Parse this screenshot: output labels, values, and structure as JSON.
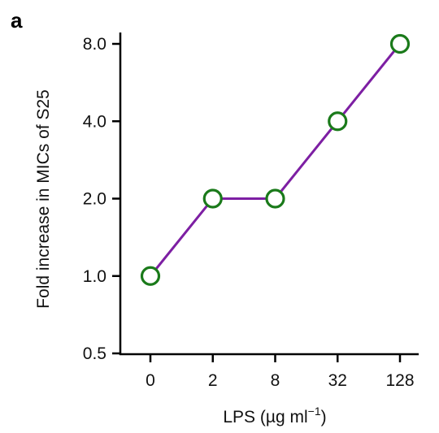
{
  "panel_label": "a",
  "chart_data": {
    "type": "line",
    "categories": [
      "0",
      "2",
      "8",
      "32",
      "128"
    ],
    "values": [
      1.0,
      2.0,
      2.0,
      4.0,
      8.0
    ],
    "xlabel_main": "LPS (µg ml",
    "xlabel_sup": "−1",
    "xlabel_close": ")",
    "ylabel": "Fold increase in MICs of S25",
    "yticks": [
      0.5,
      1.0,
      2.0,
      4.0,
      8.0
    ],
    "ytick_labels": [
      "0.5",
      "1.0",
      "2.0",
      "4.0",
      "8.0"
    ],
    "ylim": [
      0.5,
      8.0
    ],
    "yscale": "log2",
    "grid": false,
    "line_color": "#7d1fa3",
    "marker_color": "#1a7a1a",
    "marker": "open-circle"
  }
}
